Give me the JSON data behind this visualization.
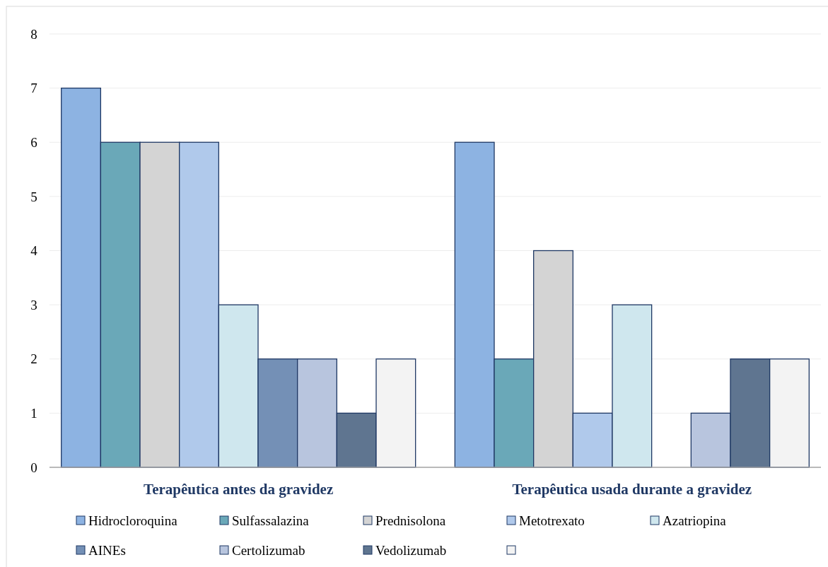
{
  "chart_data": {
    "type": "bar",
    "categories": [
      "Terapêutica antes da gravidez",
      "Terapêutica usada durante a gravidez"
    ],
    "series": [
      {
        "name": "Hidrocloroquina",
        "color": "#8db3e2",
        "values": [
          7,
          6
        ]
      },
      {
        "name": "Sulfassalazina",
        "color": "#6aa8b8",
        "values": [
          6,
          2
        ]
      },
      {
        "name": "Prednisolona",
        "color": "#d4d4d4",
        "values": [
          6,
          4
        ]
      },
      {
        "name": "Metotrexato",
        "color": "#b0c9eb",
        "values": [
          6,
          1
        ]
      },
      {
        "name": "Azatriopina",
        "color": "#cfe7ee",
        "values": [
          3,
          3
        ]
      },
      {
        "name": "AINEs",
        "color": "#7490b6",
        "values": [
          2,
          0
        ]
      },
      {
        "name": "Certolizumab",
        "color": "#b8c5de",
        "values": [
          2,
          1
        ]
      },
      {
        "name": "Vedolizumab",
        "color": "#5f7590",
        "values": [
          1,
          2
        ]
      },
      {
        "color": "#f3f3f3",
        "values": [
          2,
          2
        ]
      }
    ],
    "ylim": [
      0,
      8
    ],
    "yticks": [
      0,
      1,
      2,
      3,
      4,
      5,
      6,
      7,
      8
    ],
    "grid": "y",
    "legend": "bottom"
  }
}
